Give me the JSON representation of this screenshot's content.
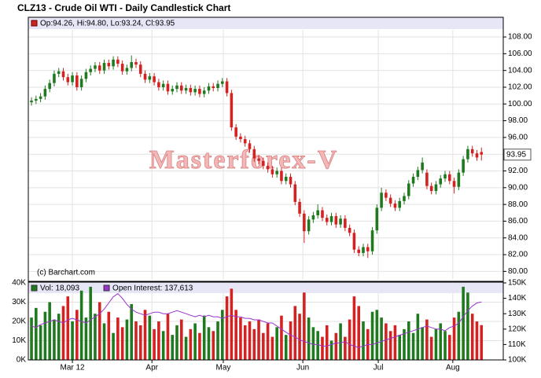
{
  "chart_data": [
    {
      "type": "candlestick",
      "title": "CLZ13 - Crude Oil WTI - Daily Candlestick Chart",
      "legend_text": "Op:94.26, Hi:94.80, Lo:93.24, Cl:93.95",
      "legend_color": "#cc2222",
      "watermark": "Masterforex-V",
      "credit": "(c) Barchart.com",
      "up_color": "#1f7a1f",
      "down_color": "#d42222",
      "grid": true,
      "xlim": [
        -0.7,
        103.8
      ],
      "xticks": [
        {
          "value": 9,
          "label": "Mar 12"
        },
        {
          "value": 26.5,
          "label": "Apr"
        },
        {
          "value": 42.2,
          "label": "May"
        },
        {
          "value": 59.7,
          "label": "Jun"
        },
        {
          "value": 76.3,
          "label": "Jul"
        },
        {
          "value": 92.7,
          "label": "Aug"
        }
      ],
      "ylim": [
        79,
        108.85
      ],
      "yticks": [
        {
          "value": 80,
          "label": "80.00"
        },
        {
          "value": 82,
          "label": "82.00"
        },
        {
          "value": 84,
          "label": "84.00"
        },
        {
          "value": 86,
          "label": "86.00"
        },
        {
          "value": 88,
          "label": "88.00"
        },
        {
          "value": 90,
          "label": "90.00"
        },
        {
          "value": 92,
          "label": "92.00"
        },
        {
          "value": 94,
          "label": "94.00"
        },
        {
          "value": 96,
          "label": "96.00"
        },
        {
          "value": 98,
          "label": "98.00"
        },
        {
          "value": 100,
          "label": "100.00"
        },
        {
          "value": 102,
          "label": "102.00"
        },
        {
          "value": 104,
          "label": "104.00"
        },
        {
          "value": 106,
          "label": "106.00"
        },
        {
          "value": 108,
          "label": "108.00"
        }
      ],
      "candles": [
        [
          100.2,
          100.8,
          99.8,
          100.4
        ],
        [
          100.4,
          101.0,
          100.0,
          100.6
        ],
        [
          100.6,
          101.3,
          100.2,
          100.9
        ],
        [
          100.9,
          102.2,
          100.5,
          101.8
        ],
        [
          101.8,
          102.9,
          101.4,
          102.5
        ],
        [
          102.5,
          104.0,
          102.1,
          103.6
        ],
        [
          103.6,
          104.3,
          103.2,
          103.9
        ],
        [
          103.9,
          104.3,
          102.8,
          103.2
        ],
        [
          103.2,
          103.6,
          102.2,
          102.6
        ],
        [
          102.6,
          103.8,
          102.2,
          103.4
        ],
        [
          103.4,
          103.8,
          101.6,
          102.0
        ],
        [
          102.0,
          103.4,
          101.6,
          103.0
        ],
        [
          103.0,
          104.2,
          102.6,
          103.8
        ],
        [
          103.8,
          104.6,
          103.4,
          104.2
        ],
        [
          104.2,
          105.0,
          103.8,
          104.6
        ],
        [
          104.6,
          105.0,
          103.6,
          104.0
        ],
        [
          104.0,
          105.3,
          103.6,
          104.9
        ],
        [
          104.9,
          105.3,
          104.1,
          104.5
        ],
        [
          104.5,
          105.7,
          104.1,
          105.3
        ],
        [
          105.3,
          105.7,
          104.4,
          104.8
        ],
        [
          104.8,
          105.2,
          103.5,
          103.9
        ],
        [
          103.9,
          104.7,
          103.5,
          104.3
        ],
        [
          104.3,
          105.8,
          103.9,
          105.0
        ],
        [
          105.0,
          105.4,
          104.3,
          104.7
        ],
        [
          104.7,
          105.1,
          103.2,
          103.6
        ],
        [
          103.6,
          104.0,
          102.5,
          102.9
        ],
        [
          102.9,
          103.7,
          102.5,
          103.3
        ],
        [
          103.3,
          103.7,
          102.2,
          102.6
        ],
        [
          102.6,
          103.0,
          101.6,
          102.0
        ],
        [
          102.0,
          102.8,
          101.6,
          102.4
        ],
        [
          102.4,
          102.8,
          101.1,
          101.5
        ],
        [
          101.5,
          102.2,
          101.1,
          101.8
        ],
        [
          101.8,
          102.6,
          101.4,
          102.2
        ],
        [
          102.2,
          102.6,
          101.2,
          101.6
        ],
        [
          101.6,
          102.3,
          101.2,
          101.9
        ],
        [
          101.9,
          102.3,
          101.0,
          101.4
        ],
        [
          101.4,
          102.2,
          101.0,
          101.8
        ],
        [
          101.8,
          102.2,
          100.8,
          101.2
        ],
        [
          101.2,
          102.0,
          100.8,
          101.6
        ],
        [
          101.6,
          102.5,
          101.2,
          102.1
        ],
        [
          102.1,
          102.5,
          101.5,
          101.9
        ],
        [
          101.9,
          102.8,
          101.5,
          102.4
        ],
        [
          102.4,
          103.1,
          102.0,
          102.7
        ],
        [
          102.7,
          103.1,
          100.9,
          101.3
        ],
        [
          101.3,
          101.7,
          96.8,
          97.2
        ],
        [
          97.2,
          97.6,
          95.7,
          96.1
        ],
        [
          96.1,
          96.5,
          95.4,
          95.8
        ],
        [
          95.8,
          96.2,
          94.9,
          95.3
        ],
        [
          95.3,
          95.7,
          94.2,
          94.6
        ],
        [
          94.6,
          95.0,
          93.1,
          93.5
        ],
        [
          93.5,
          93.9,
          92.8,
          93.2
        ],
        [
          93.2,
          93.6,
          92.2,
          92.6
        ],
        [
          92.6,
          93.0,
          91.8,
          92.2
        ],
        [
          92.2,
          92.6,
          91.2,
          91.6
        ],
        [
          91.6,
          92.4,
          91.2,
          92.0
        ],
        [
          92.0,
          92.4,
          90.4,
          90.8
        ],
        [
          90.8,
          91.7,
          90.4,
          91.3
        ],
        [
          91.3,
          91.7,
          90.0,
          90.4
        ],
        [
          90.4,
          90.8,
          87.9,
          88.3
        ],
        [
          88.3,
          88.7,
          86.5,
          86.9
        ],
        [
          86.9,
          87.3,
          83.4,
          84.8
        ],
        [
          84.8,
          86.6,
          84.4,
          86.2
        ],
        [
          86.2,
          87.1,
          85.8,
          86.7
        ],
        [
          86.7,
          88.0,
          86.3,
          87.3
        ],
        [
          87.3,
          87.7,
          86.0,
          86.4
        ],
        [
          86.4,
          86.8,
          85.5,
          85.9
        ],
        [
          85.9,
          87.0,
          85.5,
          86.6
        ],
        [
          86.6,
          87.0,
          85.2,
          85.6
        ],
        [
          85.6,
          86.7,
          85.2,
          86.3
        ],
        [
          86.3,
          86.7,
          84.8,
          85.2
        ],
        [
          85.2,
          85.6,
          84.2,
          84.6
        ],
        [
          84.6,
          85.0,
          82.2,
          82.6
        ],
        [
          82.6,
          83.0,
          81.8,
          82.2
        ],
        [
          82.2,
          83.3,
          81.8,
          82.9
        ],
        [
          82.9,
          83.3,
          81.6,
          82.4
        ],
        [
          82.4,
          85.3,
          82.0,
          84.9
        ],
        [
          84.9,
          88.0,
          84.5,
          87.6
        ],
        [
          87.6,
          90.0,
          87.2,
          89.4
        ],
        [
          89.4,
          89.8,
          88.4,
          88.8
        ],
        [
          88.8,
          89.2,
          87.7,
          88.1
        ],
        [
          88.1,
          88.5,
          87.2,
          87.6
        ],
        [
          87.6,
          88.8,
          87.2,
          88.4
        ],
        [
          88.4,
          89.4,
          88.0,
          89.0
        ],
        [
          89.0,
          90.9,
          88.6,
          90.5
        ],
        [
          90.5,
          91.7,
          90.1,
          91.3
        ],
        [
          91.3,
          92.5,
          90.9,
          92.1
        ],
        [
          92.1,
          93.6,
          91.7,
          93.0
        ],
        [
          91.8,
          92.2,
          89.8,
          90.2
        ],
        [
          90.2,
          90.6,
          89.2,
          89.6
        ],
        [
          89.6,
          90.8,
          89.2,
          90.4
        ],
        [
          90.4,
          91.5,
          90.0,
          91.1
        ],
        [
          91.1,
          92.0,
          90.7,
          91.6
        ],
        [
          91.6,
          92.0,
          90.4,
          90.8
        ],
        [
          90.8,
          91.2,
          89.3,
          90.1
        ],
        [
          90.1,
          92.2,
          89.7,
          91.8
        ],
        [
          91.8,
          93.8,
          91.4,
          93.4
        ],
        [
          93.4,
          95.0,
          93.0,
          94.6
        ],
        [
          94.6,
          95.0,
          93.7,
          94.1
        ],
        [
          94.1,
          94.5,
          93.2,
          93.6
        ],
        [
          94.26,
          94.8,
          93.24,
          93.95
        ]
      ]
    },
    {
      "type": "bar",
      "grid": true,
      "ylim": [
        0,
        40000
      ],
      "yticks": [
        {
          "value": 0,
          "label": "0K"
        },
        {
          "value": 10000,
          "label": "10K"
        },
        {
          "value": 20000,
          "label": "20K"
        },
        {
          "value": 30000,
          "label": "30K"
        },
        {
          "value": 40000,
          "label": "40K"
        }
      ],
      "y2lim": [
        100000,
        150000
      ],
      "y2ticks": [
        {
          "value": 100000,
          "label": "100K"
        },
        {
          "value": 110000,
          "label": "110K"
        },
        {
          "value": 120000,
          "label": "120K"
        },
        {
          "value": 130000,
          "label": "130K"
        },
        {
          "value": 140000,
          "label": "140K"
        },
        {
          "value": 150000,
          "label": "150K"
        }
      ],
      "series": [
        {
          "name": "Vol: 18,093",
          "color": "#1f7a1f",
          "values": [
            22000,
            27000,
            18000,
            25000,
            30000,
            21000,
            24000,
            28000,
            33000,
            20000,
            26000,
            36000,
            22000,
            38000,
            24000,
            30000,
            19000,
            25000,
            14000,
            22000,
            17000,
            21000,
            29000,
            20000,
            18000,
            26000,
            23000,
            16000,
            20000,
            15000,
            24000,
            13000,
            18000,
            21000,
            12000,
            16000,
            19000,
            14000,
            23000,
            17000,
            15000,
            20000,
            26000,
            33000,
            37000,
            26000,
            22000,
            18000,
            20000,
            16000,
            21000,
            14000,
            19000,
            12000,
            17000,
            23000,
            13000,
            20000,
            28000,
            24000,
            35000,
            22000,
            17000,
            15000,
            12000,
            18000,
            10000,
            14000,
            19000,
            12000,
            21000,
            33000,
            28000,
            20000,
            16000,
            25000,
            26000,
            22000,
            19000,
            15000,
            18000,
            13000,
            16000,
            20000,
            14000,
            24000,
            17000,
            21000,
            12000,
            16000,
            19000,
            15000,
            13000,
            22000,
            25000,
            38000,
            35000,
            24000,
            20000,
            18093
          ]
        },
        {
          "name": "Open Interest: 137,613",
          "color": "#9933cc",
          "axis": "y2",
          "values": [
            122000,
            121000,
            123000,
            124000,
            125000,
            126000,
            125000,
            124000,
            126000,
            127000,
            126000,
            125000,
            124000,
            126000,
            128000,
            130000,
            133000,
            137000,
            141000,
            143000,
            140000,
            136000,
            133000,
            131000,
            130000,
            129000,
            130000,
            131000,
            131000,
            130000,
            130000,
            131000,
            132000,
            131000,
            130000,
            129000,
            128000,
            129000,
            128000,
            129000,
            128000,
            128000,
            127000,
            128000,
            129000,
            128000,
            128000,
            127000,
            127000,
            126000,
            126000,
            125000,
            124000,
            124000,
            122000,
            120000,
            118000,
            116000,
            115000,
            113000,
            112000,
            111000,
            110000,
            110000,
            109000,
            109000,
            110000,
            111000,
            111000,
            112000,
            110000,
            109000,
            108000,
            109000,
            110000,
            110000,
            111000,
            112000,
            113000,
            114000,
            115000,
            116000,
            117000,
            118000,
            119000,
            120000,
            121000,
            122000,
            121000,
            120000,
            120000,
            119000,
            121000,
            122000,
            124000,
            128000,
            132000,
            135000,
            137000,
            137613
          ]
        }
      ]
    }
  ]
}
